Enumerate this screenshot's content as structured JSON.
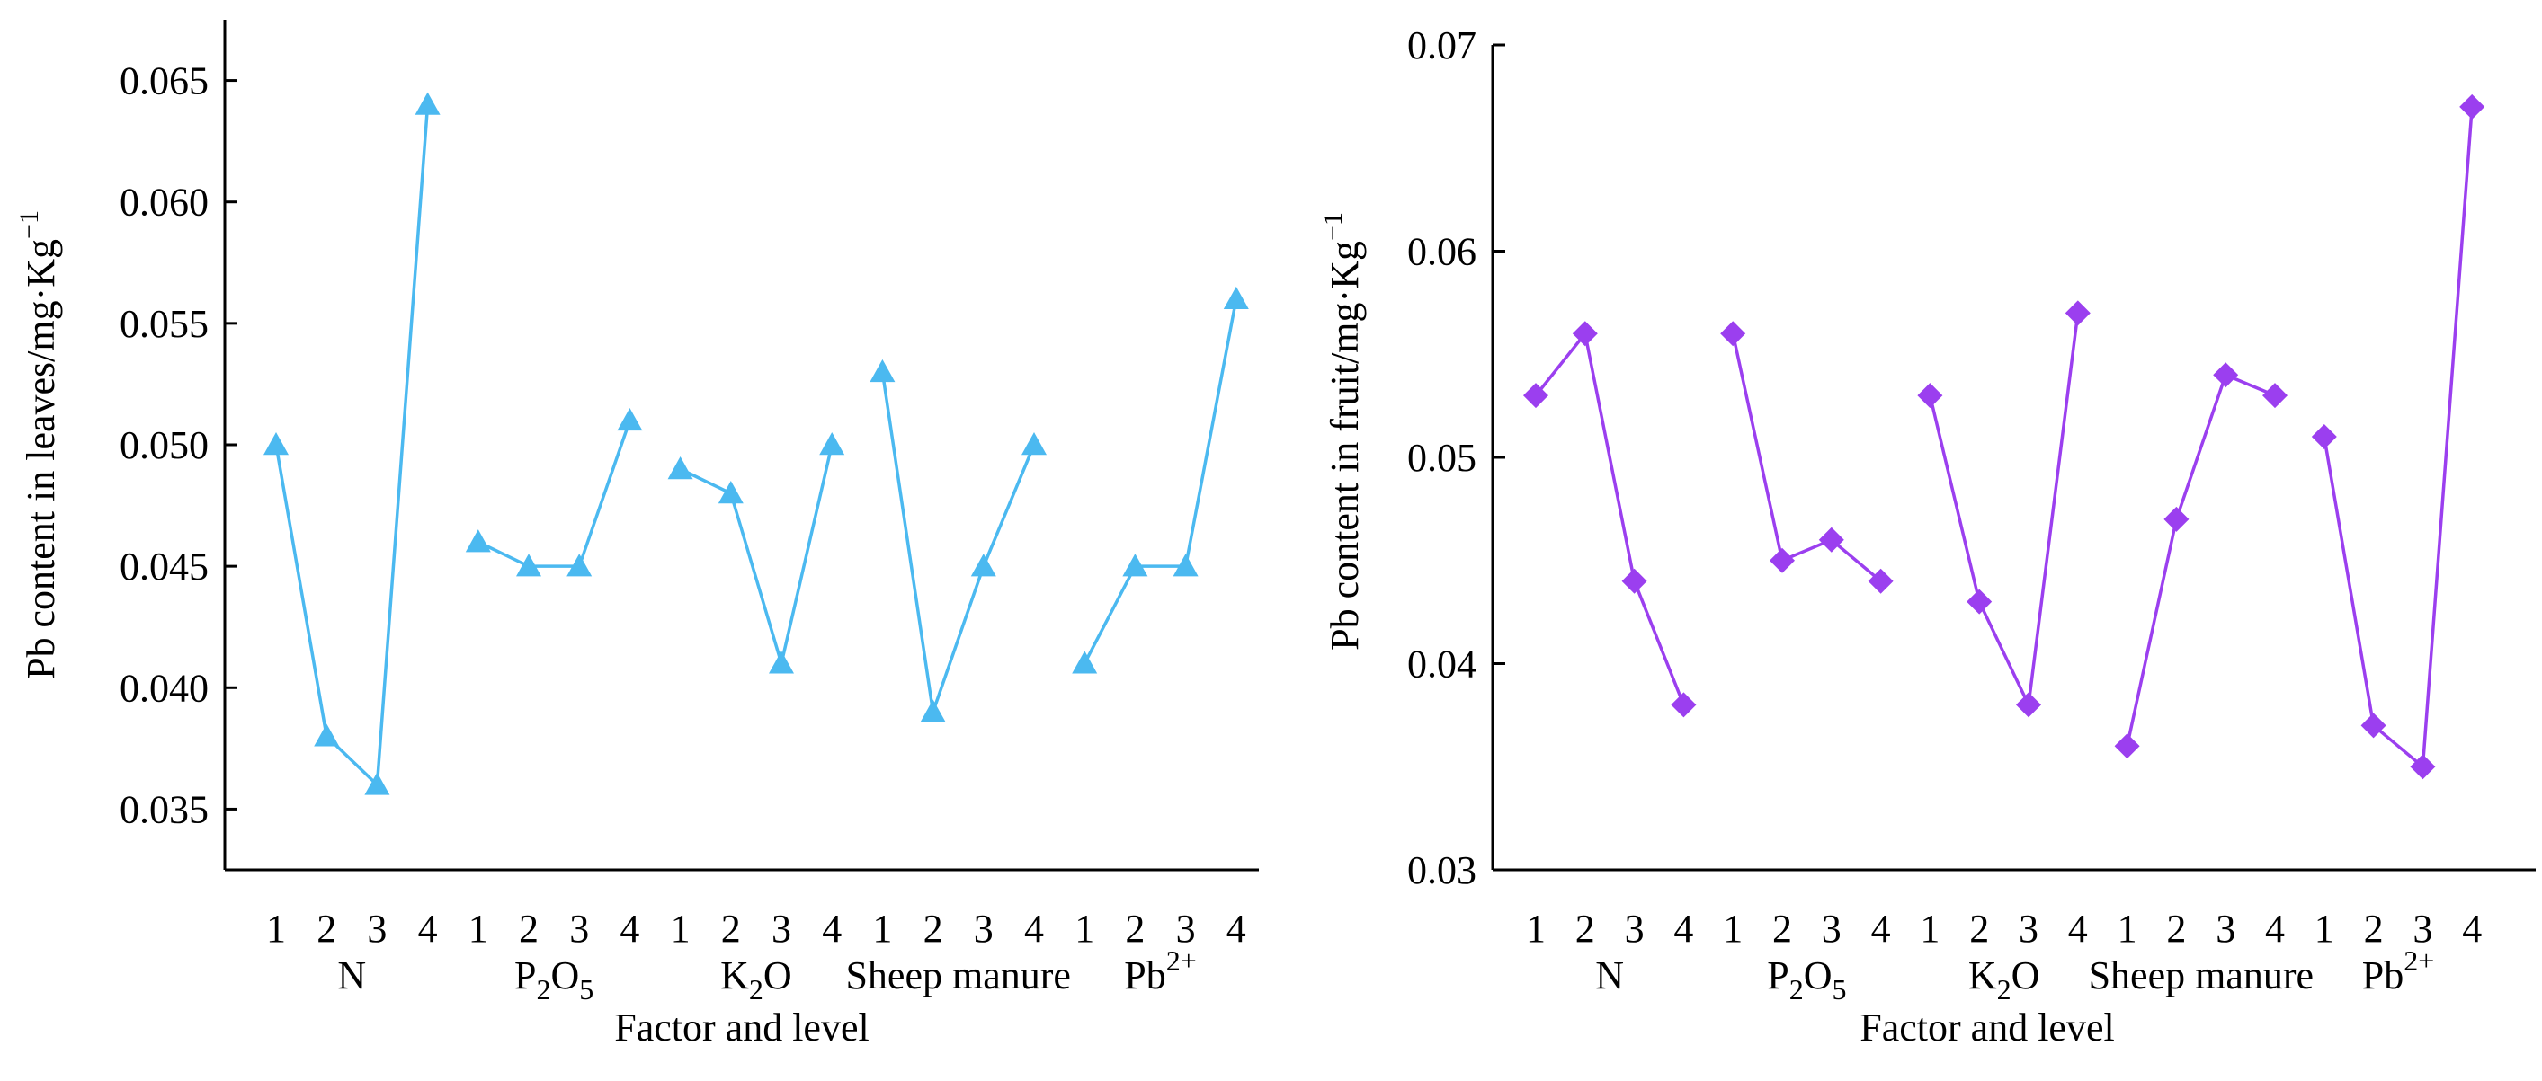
{
  "chart_data": [
    {
      "type": "line",
      "marker": "triangle",
      "color": "#4BB9F0",
      "ylabel_main": "Pb content in leaves/mg·Kg",
      "ylabel_sup": "−1",
      "xlabel": "Factor and level",
      "ylim": [
        0.0325,
        0.0675
      ],
      "yticks": [
        "0.035",
        "0.040",
        "0.045",
        "0.050",
        "0.055",
        "0.060",
        "0.065"
      ],
      "ytick_values": [
        0.035,
        0.04,
        0.045,
        0.05,
        0.055,
        0.06,
        0.065
      ],
      "levels": [
        "1",
        "2",
        "3",
        "4"
      ],
      "groups": [
        {
          "label": "N",
          "sub": "",
          "sup": "",
          "label_after": "",
          "values": [
            0.05,
            0.038,
            0.036,
            0.064
          ]
        },
        {
          "label": "P",
          "sub": "2",
          "sup": "",
          "label_after": "O",
          "sub2": "5",
          "values": [
            0.046,
            0.045,
            0.045,
            0.051
          ]
        },
        {
          "label": "K",
          "sub": "2",
          "sup": "",
          "label_after": "O",
          "sub2": "",
          "values": [
            0.049,
            0.048,
            0.041,
            0.05
          ]
        },
        {
          "label": "Sheep manure",
          "sub": "",
          "sup": "",
          "label_after": "",
          "sub2": "",
          "values": [
            0.053,
            0.039,
            0.045,
            0.05
          ]
        },
        {
          "label": "Pb",
          "sub": "",
          "sup": "2+",
          "label_after": "",
          "sub2": "",
          "values": [
            0.041,
            0.045,
            0.045,
            0.056
          ]
        }
      ]
    },
    {
      "type": "line",
      "marker": "diamond",
      "color": "#9B3FEF",
      "ylabel_main": "Pb content in fruit/mg·Kg",
      "ylabel_sup": "−1",
      "xlabel": "Factor and level",
      "ylim": [
        0.03,
        0.07
      ],
      "yticks": [
        "0.03",
        "0.04",
        "0.05",
        "0.06",
        "0.07"
      ],
      "ytick_values": [
        0.03,
        0.04,
        0.05,
        0.06,
        0.07
      ],
      "levels": [
        "1",
        "2",
        "3",
        "4"
      ],
      "groups": [
        {
          "label": "N",
          "sub": "",
          "sup": "",
          "label_after": "",
          "sub2": "",
          "values": [
            0.053,
            0.056,
            0.044,
            0.038
          ]
        },
        {
          "label": "P",
          "sub": "2",
          "sup": "",
          "label_after": "O",
          "sub2": "5",
          "values": [
            0.056,
            0.045,
            0.046,
            0.044
          ]
        },
        {
          "label": "K",
          "sub": "2",
          "sup": "",
          "label_after": "O",
          "sub2": "",
          "values": [
            0.053,
            0.043,
            0.038,
            0.057
          ]
        },
        {
          "label": "Sheep manure",
          "sub": "",
          "sup": "",
          "label_after": "",
          "sub2": "",
          "values": [
            0.036,
            0.047,
            0.054,
            0.053
          ]
        },
        {
          "label": "Pb",
          "sub": "",
          "sup": "2+",
          "label_after": "",
          "sub2": "",
          "values": [
            0.051,
            0.037,
            0.035,
            0.067
          ]
        }
      ]
    }
  ]
}
